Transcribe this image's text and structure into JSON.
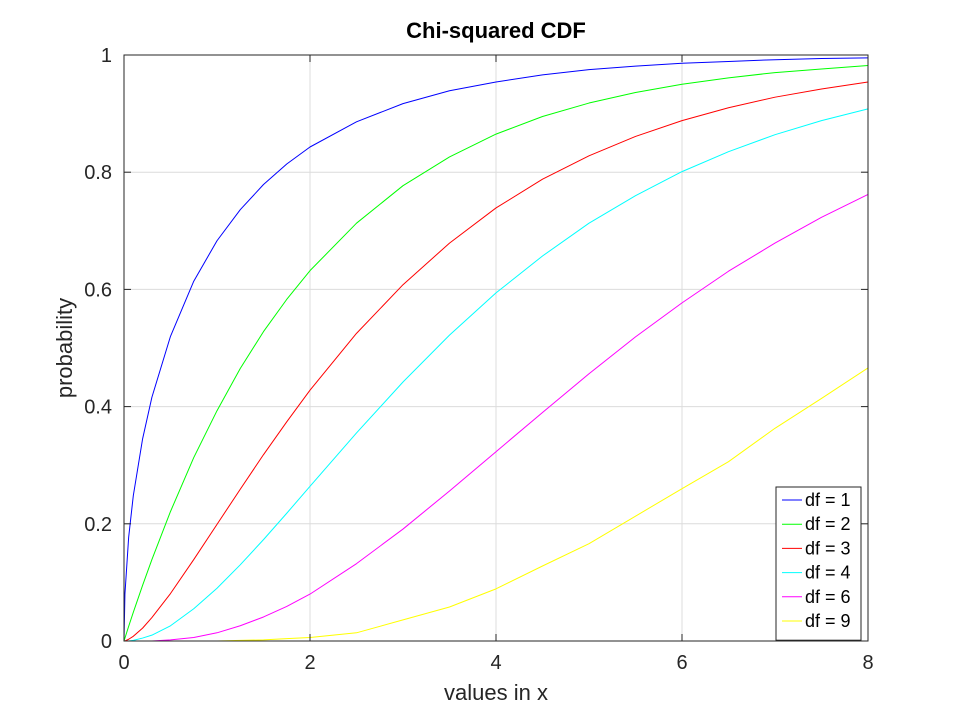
{
  "chart_data": {
    "type": "line",
    "title": "Chi-squared CDF",
    "xlabel": "values in x",
    "ylabel": "probability",
    "xlim": [
      0,
      8
    ],
    "ylim": [
      0,
      1
    ],
    "xticks": [
      0,
      2,
      4,
      6,
      8
    ],
    "xtick_labels": [
      "0",
      "2",
      "4",
      "6",
      "8"
    ],
    "yticks": [
      0,
      0.2,
      0.4,
      0.6,
      0.8,
      1
    ],
    "ytick_labels": [
      "0",
      "0.2",
      "0.4",
      "0.6",
      "0.8",
      "1"
    ],
    "grid": true,
    "legend_position": "bottom-right",
    "x": [
      0,
      0.01,
      0.05,
      0.1,
      0.2,
      0.3,
      0.5,
      0.75,
      1,
      1.25,
      1.5,
      1.75,
      2,
      2.5,
      3,
      3.5,
      4,
      4.5,
      5,
      5.5,
      6,
      6.5,
      7,
      7.5,
      8
    ],
    "series": [
      {
        "name": "df = 1",
        "color": "#0000ff",
        "values": [
          0,
          0.08,
          0.177,
          0.248,
          0.345,
          0.416,
          0.52,
          0.614,
          0.683,
          0.736,
          0.779,
          0.814,
          0.843,
          0.886,
          0.917,
          0.939,
          0.954,
          0.966,
          0.975,
          0.981,
          0.986,
          0.989,
          0.992,
          0.994,
          0.995
        ]
      },
      {
        "name": "df = 2",
        "color": "#00ff00",
        "values": [
          0,
          0.005,
          0.025,
          0.049,
          0.095,
          0.139,
          0.221,
          0.313,
          0.393,
          0.465,
          0.528,
          0.583,
          0.632,
          0.713,
          0.777,
          0.826,
          0.865,
          0.895,
          0.918,
          0.936,
          0.95,
          0.961,
          0.97,
          0.976,
          0.982
        ]
      },
      {
        "name": "df = 3",
        "color": "#ff0000",
        "values": [
          0,
          0.0,
          0.003,
          0.008,
          0.022,
          0.04,
          0.081,
          0.139,
          0.199,
          0.259,
          0.318,
          0.374,
          0.428,
          0.525,
          0.608,
          0.679,
          0.739,
          0.788,
          0.828,
          0.861,
          0.888,
          0.91,
          0.928,
          0.942,
          0.954
        ]
      },
      {
        "name": "df = 4",
        "color": "#00ffff",
        "values": [
          0,
          0.0,
          0.0,
          0.001,
          0.005,
          0.01,
          0.026,
          0.055,
          0.09,
          0.13,
          0.173,
          0.218,
          0.264,
          0.355,
          0.442,
          0.522,
          0.594,
          0.657,
          0.713,
          0.76,
          0.801,
          0.835,
          0.864,
          0.888,
          0.908
        ]
      },
      {
        "name": "df = 6",
        "color": "#ff00ff",
        "values": [
          0,
          0.0,
          0.0,
          0.0,
          0.0,
          0.0,
          0.002,
          0.006,
          0.014,
          0.026,
          0.041,
          0.059,
          0.08,
          0.132,
          0.191,
          0.256,
          0.323,
          0.39,
          0.456,
          0.519,
          0.577,
          0.631,
          0.679,
          0.723,
          0.762
        ]
      },
      {
        "name": "df = 9",
        "color": "#ffff00",
        "values": [
          0,
          0.0,
          0.0,
          0.0,
          0.0,
          0.0,
          0.0,
          0.0,
          0.0,
          0.001,
          0.002,
          0.004,
          0.006,
          0.014,
          0.036,
          0.058,
          0.089,
          0.128,
          0.166,
          0.213,
          0.26,
          0.306,
          0.363,
          0.414,
          0.466
        ]
      }
    ]
  }
}
